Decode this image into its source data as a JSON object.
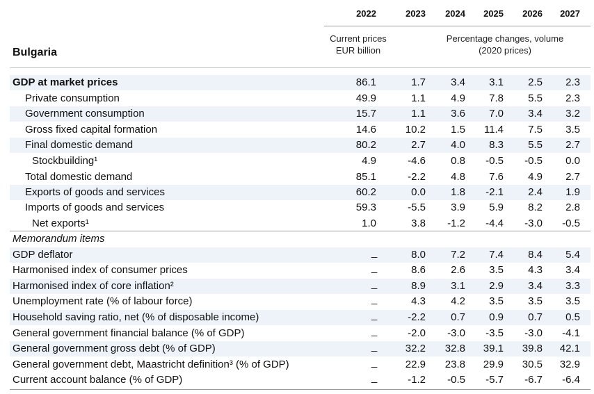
{
  "header": {
    "country": "Bulgaria",
    "years": [
      "2022",
      "2023",
      "2024",
      "2025",
      "2026",
      "2027"
    ],
    "sub_current": "Current prices\nEUR billion",
    "sub_pct": "Percentage changes, volume\n(2020 prices)"
  },
  "main_rows": [
    {
      "label": "GDP at market prices",
      "values": [
        "86.1",
        "1.7",
        "3.4",
        "3.1",
        "2.5",
        "2.3"
      ]
    },
    {
      "label": "Private consumption",
      "values": [
        "49.9",
        "1.1",
        "4.9",
        "7.8",
        "5.5",
        "2.3"
      ]
    },
    {
      "label": "Government consumption",
      "values": [
        "15.7",
        "1.1",
        "3.6",
        "7.0",
        "3.4",
        "3.2"
      ]
    },
    {
      "label": "Gross fixed capital formation",
      "values": [
        "14.6",
        "10.2",
        "1.5",
        "11.4",
        "7.5",
        "3.5"
      ]
    },
    {
      "label": "Final domestic demand",
      "values": [
        "80.2",
        "2.7",
        "4.0",
        "8.3",
        "5.5",
        "2.7"
      ]
    },
    {
      "label": "Stockbuilding¹",
      "values": [
        "4.9",
        "-4.6",
        "0.8",
        "-0.5",
        "-0.5",
        "0.0"
      ]
    },
    {
      "label": "Total domestic demand",
      "values": [
        "85.1",
        "-2.2",
        "4.8",
        "7.6",
        "4.9",
        "2.7"
      ]
    },
    {
      "label": "Exports of goods and services",
      "values": [
        "60.2",
        "0.0",
        "1.8",
        "-2.1",
        "2.4",
        "1.9"
      ]
    },
    {
      "label": "Imports of goods and services",
      "values": [
        "59.3",
        "-5.5",
        "3.9",
        "5.9",
        "8.2",
        "2.8"
      ]
    },
    {
      "label": "Net exports¹",
      "values": [
        "1.0",
        "3.8",
        "-1.2",
        "-4.4",
        "-3.0",
        "-0.5"
      ]
    }
  ],
  "memo_title": "Memorandum items",
  "memo_dash": "_",
  "memo_rows": [
    {
      "label": "GDP deflator",
      "values": [
        "8.0",
        "7.2",
        "7.4",
        "8.4",
        "5.4"
      ]
    },
    {
      "label": "Harmonised index of consumer prices",
      "values": [
        "8.6",
        "2.6",
        "3.5",
        "4.3",
        "3.4"
      ]
    },
    {
      "label": "Harmonised index of core inflation²",
      "values": [
        "8.9",
        "3.1",
        "2.9",
        "3.4",
        "3.3"
      ]
    },
    {
      "label": "Unemployment rate (% of labour force)",
      "values": [
        "4.3",
        "4.2",
        "3.5",
        "3.5",
        "3.5"
      ]
    },
    {
      "label": "Household saving ratio, net (% of disposable income)",
      "values": [
        "-2.2",
        "0.7",
        "0.9",
        "0.7",
        "0.5"
      ]
    },
    {
      "label": "General government financial balance (% of GDP)",
      "values": [
        "-2.0",
        "-3.0",
        "-3.5",
        "-3.0",
        "-4.1"
      ]
    },
    {
      "label": "General government gross debt (% of GDP)",
      "values": [
        "32.2",
        "32.8",
        "39.1",
        "39.8",
        "42.1"
      ]
    },
    {
      "label": "General government debt, Maastricht definition³ (% of GDP)",
      "values": [
        "22.9",
        "23.8",
        "29.9",
        "30.5",
        "32.9"
      ]
    },
    {
      "label": "Current account balance (% of GDP)",
      "values": [
        "-1.2",
        "-0.5",
        "-5.7",
        "-6.7",
        "-6.4"
      ]
    }
  ]
}
